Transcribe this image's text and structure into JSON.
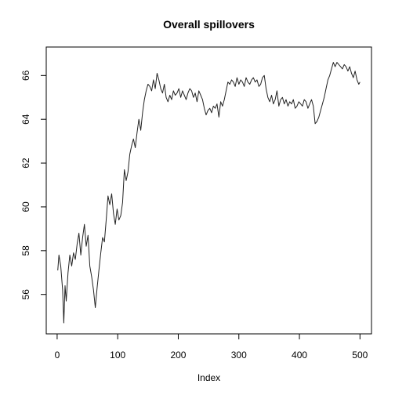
{
  "chart_data": {
    "type": "line",
    "title": "Overall spillovers",
    "xlabel": "Index",
    "ylabel": "",
    "xlim": [
      -18,
      519
    ],
    "ylim": [
      54.2,
      67.3
    ],
    "xticks": [
      0,
      100,
      200,
      300,
      400,
      500
    ],
    "yticks": [
      56,
      58,
      60,
      62,
      64,
      66
    ],
    "grid": false,
    "legend": "none",
    "line_color": "#222222",
    "series": [
      {
        "x": [
          1,
          3,
          6,
          9,
          11,
          13,
          15,
          18,
          21,
          24,
          27,
          30,
          33,
          36,
          39,
          42,
          45,
          48,
          51,
          54,
          57,
          60,
          63,
          66,
          69,
          72,
          75,
          78,
          81,
          84,
          87,
          90,
          93,
          96,
          99,
          102,
          105,
          108,
          111,
          114,
          117,
          120,
          123,
          126,
          129,
          132,
          135,
          138,
          141,
          144,
          147,
          150,
          153,
          156,
          159,
          162,
          165,
          168,
          171,
          174,
          177,
          180,
          183,
          186,
          189,
          192,
          195,
          198,
          201,
          204,
          207,
          210,
          213,
          216,
          219,
          222,
          225,
          228,
          231,
          234,
          237,
          240,
          243,
          246,
          249,
          252,
          255,
          258,
          261,
          264,
          267,
          270,
          273,
          276,
          279,
          282,
          285,
          288,
          291,
          294,
          297,
          300,
          303,
          306,
          309,
          312,
          315,
          318,
          321,
          324,
          327,
          330,
          333,
          336,
          339,
          342,
          345,
          348,
          351,
          354,
          357,
          360,
          363,
          366,
          369,
          372,
          375,
          378,
          381,
          384,
          387,
          390,
          393,
          396,
          399,
          402,
          405,
          408,
          411,
          414,
          417,
          420,
          423,
          426,
          429,
          432,
          435,
          438,
          441,
          444,
          447,
          450,
          453,
          456,
          459,
          462,
          465,
          468,
          471,
          474,
          477,
          480,
          483,
          486,
          489,
          492,
          495,
          498,
          500
        ],
        "values": [
          57.1,
          57.8,
          57.3,
          56.2,
          54.7,
          56.4,
          55.7,
          57.0,
          57.8,
          57.3,
          57.9,
          57.6,
          58.3,
          58.8,
          57.8,
          58.6,
          59.2,
          58.2,
          58.7,
          57.3,
          56.8,
          56.2,
          55.4,
          56.3,
          57.1,
          57.9,
          58.6,
          58.4,
          59.4,
          60.5,
          60.1,
          60.6,
          59.7,
          59.2,
          59.9,
          59.4,
          59.6,
          60.2,
          61.7,
          61.2,
          61.6,
          62.4,
          62.8,
          63.1,
          62.7,
          63.4,
          64.0,
          63.5,
          64.3,
          64.9,
          65.3,
          65.6,
          65.5,
          65.3,
          65.8,
          65.4,
          66.1,
          65.8,
          65.4,
          65.2,
          65.6,
          65.0,
          64.8,
          65.1,
          64.9,
          65.3,
          65.1,
          65.2,
          65.4,
          65.0,
          65.3,
          65.1,
          64.9,
          65.2,
          65.4,
          65.3,
          65.0,
          65.2,
          64.8,
          65.3,
          65.1,
          64.9,
          64.5,
          64.2,
          64.4,
          64.5,
          64.3,
          64.6,
          64.5,
          64.7,
          64.1,
          64.8,
          64.6,
          64.9,
          65.3,
          65.7,
          65.6,
          65.8,
          65.7,
          65.5,
          65.9,
          65.6,
          65.8,
          65.7,
          65.5,
          65.9,
          65.7,
          65.6,
          65.8,
          65.9,
          65.7,
          65.8,
          65.5,
          65.6,
          65.9,
          66.0,
          65.4,
          65.0,
          64.8,
          65.1,
          64.7,
          64.9,
          65.3,
          64.6,
          64.9,
          65.0,
          64.7,
          64.9,
          64.6,
          64.8,
          64.7,
          64.9,
          64.5,
          64.6,
          64.8,
          64.7,
          64.6,
          64.9,
          64.8,
          64.5,
          64.7,
          64.9,
          64.6,
          63.8,
          63.9,
          64.1,
          64.4,
          64.7,
          65.0,
          65.4,
          65.8,
          66.0,
          66.3,
          66.6,
          66.4,
          66.6,
          66.5,
          66.4,
          66.3,
          66.5,
          66.4,
          66.2,
          66.4,
          66.1,
          65.9,
          66.2,
          65.8,
          65.6,
          65.7
        ]
      }
    ]
  }
}
